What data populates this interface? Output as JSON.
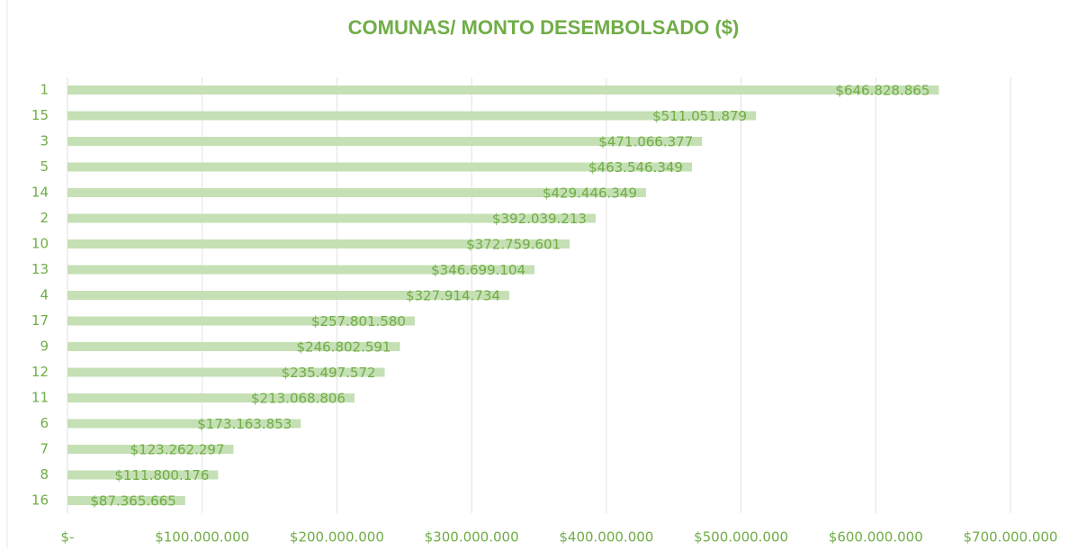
{
  "chart_data": {
    "type": "hbar",
    "title": "COMUNAS/ MONTO DESEMBOLSADO ($)",
    "categories": [
      "1",
      "15",
      "3",
      "5",
      "14",
      "2",
      "10",
      "13",
      "4",
      "17",
      "9",
      "12",
      "11",
      "6",
      "7",
      "8",
      "16"
    ],
    "values": [
      646828865,
      511051879,
      471066377,
      463546349,
      429446349,
      392039213,
      372759601,
      346699104,
      327914734,
      257801580,
      246802591,
      235497572,
      213068806,
      173163853,
      123262297,
      111800176,
      87365665
    ],
    "value_labels": [
      "$646.828.865",
      "$511.051.879",
      "$471.066.377",
      "$463.546.349",
      "$429.446.349",
      "$392.039.213",
      "$372.759.601",
      "$346.699.104",
      "$327.914.734",
      "$257.801.580",
      "$246.802.591",
      "$235.497.572",
      "$213.068.806",
      "$173.163.853",
      "$123.262.297",
      "$111.800.176",
      "$87.365.665"
    ],
    "color": "#c5e0b4",
    "xlim": [
      0,
      700000000
    ],
    "xticks": [
      {
        "value": 0,
        "label": "$-"
      },
      {
        "value": 100000000,
        "label": "$100.000.000"
      },
      {
        "value": 200000000,
        "label": "$200.000.000"
      },
      {
        "value": 300000000,
        "label": "$300.000.000"
      },
      {
        "value": 400000000,
        "label": "$400.000.000"
      },
      {
        "value": 500000000,
        "label": "$500.000.000"
      },
      {
        "value": 600000000,
        "label": "$600.000.000"
      },
      {
        "value": 700000000,
        "label": "$700.000.000"
      }
    ],
    "grid": true
  }
}
